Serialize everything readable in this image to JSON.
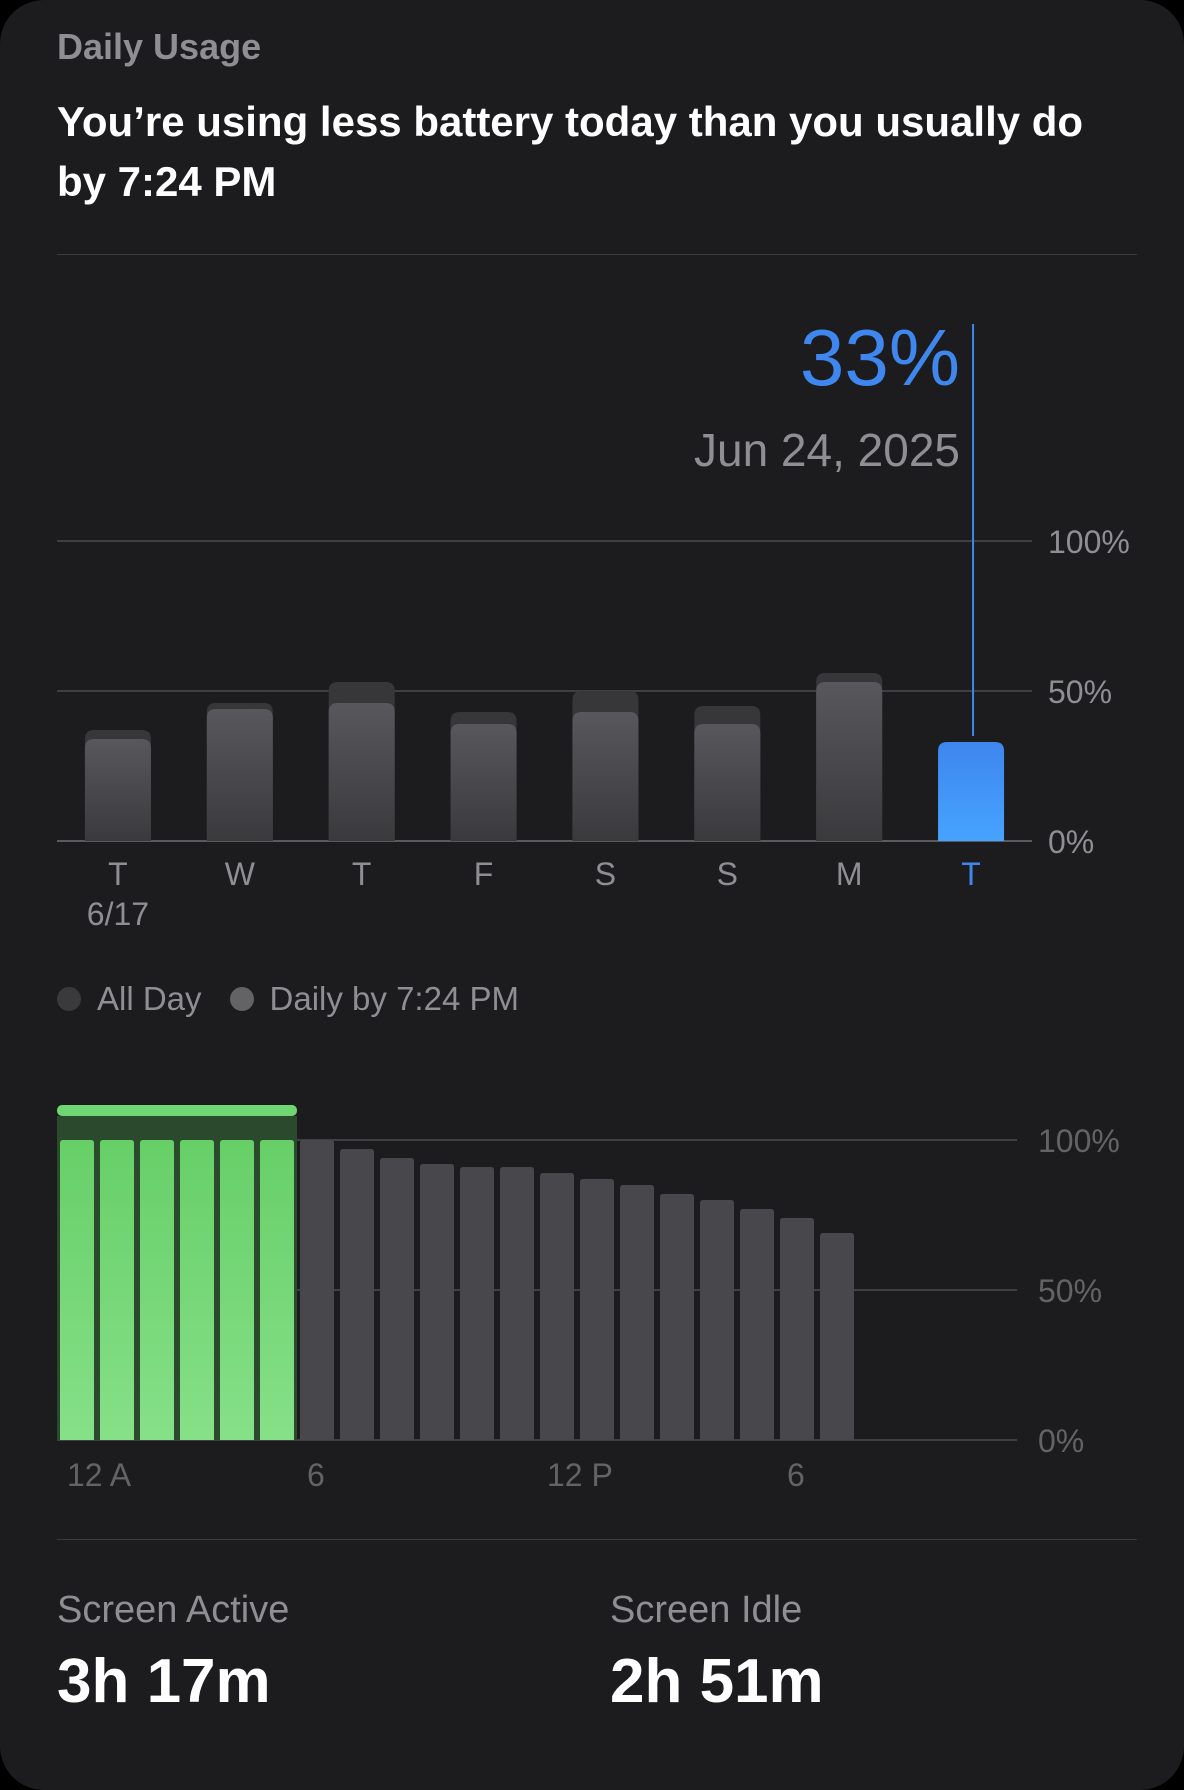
{
  "header": {
    "section_label": "Daily Usage",
    "headline": "You’re using less battery today than you usually do by 7:24 PM"
  },
  "selection": {
    "value": "33%",
    "date": "Jun 24, 2025"
  },
  "weekly_chart": {
    "type": "bar",
    "y_ticks": [
      "100%",
      "50%",
      "0%"
    ],
    "ylim": [
      0,
      100
    ],
    "categories": [
      "T",
      "W",
      "T",
      "F",
      "S",
      "S",
      "M",
      "T"
    ],
    "sub_labels": [
      "6/17",
      "",
      "",
      "",
      "",
      "",
      "",
      ""
    ],
    "selected_index": 7,
    "series": [
      {
        "name": "All Day",
        "values": [
          37,
          46,
          53,
          43,
          50,
          45,
          56,
          null
        ]
      },
      {
        "name": "Daily by 7:24 PM",
        "values": [
          34,
          44,
          46,
          39,
          43,
          39,
          53,
          33
        ]
      }
    ]
  },
  "legend": [
    {
      "label": "All Day",
      "color": "#3a3a3c"
    },
    {
      "label": "Daily by 7:24 PM",
      "color": "#636366"
    }
  ],
  "level_chart": {
    "type": "bar",
    "y_ticks": [
      "100%",
      "50%",
      "0%"
    ],
    "ylim": [
      0,
      100
    ],
    "x_labels": [
      "12 A",
      "6",
      "12 P",
      "6"
    ],
    "hours": [
      "12 A",
      "1 A",
      "2 A",
      "3 A",
      "4 A",
      "5 A",
      "6 A",
      "7 A",
      "8 A",
      "9 A",
      "10 A",
      "11 A",
      "12 P",
      "1 P",
      "2 P",
      "3 P",
      "4 P",
      "5 P",
      "6 P",
      "7 P"
    ],
    "levels": [
      100,
      100,
      100,
      100,
      100,
      100,
      100,
      97,
      94,
      92,
      91,
      91,
      89,
      87,
      85,
      82,
      80,
      77,
      74,
      69
    ],
    "charging_hours": 6,
    "charging_icon": "lightning-bolt-icon"
  },
  "stats": [
    {
      "label": "Screen Active",
      "value": "3h 17m"
    },
    {
      "label": "Screen Idle",
      "value": "2h 51m"
    }
  ],
  "colors": {
    "accent_blue": "#3f87ee",
    "charging_green": "#6fd672",
    "bar_gray": "#48484c",
    "background": "#1c1c1e"
  }
}
